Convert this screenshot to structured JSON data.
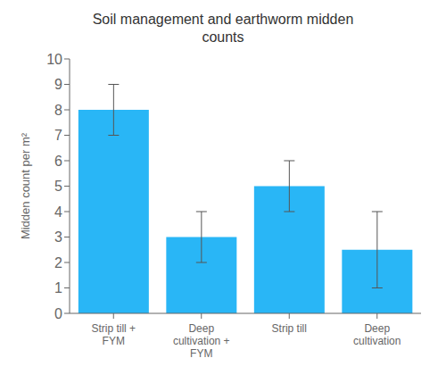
{
  "chart_data": {
    "type": "bar",
    "title": "Soil management and earthworm midden\ncounts",
    "ylabel": "Midden count per m²",
    "categories": [
      "Strip till +\nFYM",
      "Deep\ncultivation +\nFYM",
      "Strip till",
      "Deep\ncultivation"
    ],
    "values": [
      8.0,
      3.0,
      5.0,
      2.5
    ],
    "errors": [
      1.0,
      1.0,
      1.0,
      1.5
    ],
    "color": "#29b6f6",
    "ylim": [
      0,
      10
    ],
    "yticks": [
      0,
      1,
      2,
      3,
      4,
      5,
      6,
      7,
      8,
      9,
      10
    ],
    "grid": false
  }
}
